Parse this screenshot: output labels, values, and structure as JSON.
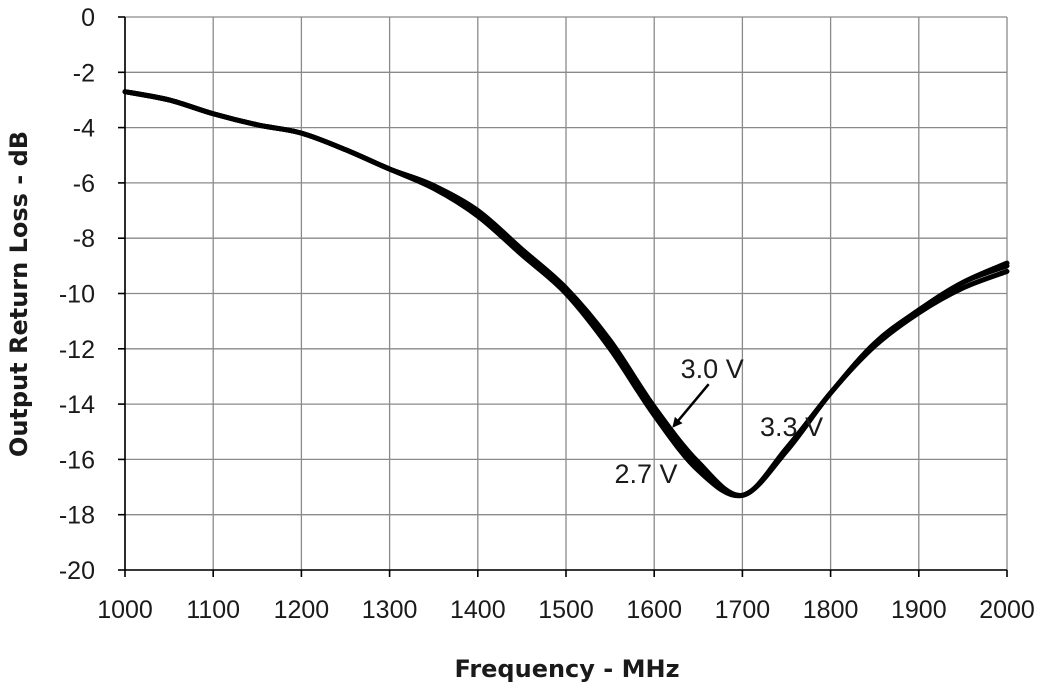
{
  "chart_data": {
    "type": "line",
    "title": "",
    "xlabel": "Frequency - MHz",
    "ylabel": "Output Return Loss - dB",
    "xlim": [
      1000,
      2000
    ],
    "ylim": [
      -20,
      0
    ],
    "x_ticks": [
      1000,
      1100,
      1200,
      1300,
      1400,
      1500,
      1600,
      1700,
      1800,
      1900,
      2000
    ],
    "y_ticks": [
      0,
      -2,
      -4,
      -6,
      -8,
      -10,
      -12,
      -14,
      -16,
      -18,
      -20
    ],
    "grid": true,
    "legend": "none",
    "line_color": "#000000",
    "x": [
      1000,
      1050,
      1100,
      1150,
      1200,
      1250,
      1300,
      1350,
      1400,
      1450,
      1500,
      1550,
      1600,
      1650,
      1700,
      1750,
      1800,
      1850,
      1900,
      1950,
      2000
    ],
    "series": [
      {
        "name": "2.7 V",
        "values": [
          -2.7,
          -3.0,
          -3.5,
          -3.9,
          -4.2,
          -4.8,
          -5.5,
          -6.2,
          -7.2,
          -8.6,
          -10.0,
          -12.0,
          -14.4,
          -16.4,
          -17.3,
          -15.7,
          -13.6,
          -11.9,
          -10.7,
          -9.8,
          -9.2
        ]
      },
      {
        "name": "3.0 V",
        "values": [
          -2.7,
          -3.0,
          -3.5,
          -3.9,
          -4.2,
          -4.8,
          -5.5,
          -6.1,
          -7.1,
          -8.5,
          -9.9,
          -11.8,
          -14.2,
          -16.2,
          -17.3,
          -15.6,
          -13.6,
          -11.8,
          -10.6,
          -9.6,
          -9.0
        ]
      },
      {
        "name": "3.3 V",
        "values": [
          -2.7,
          -3.0,
          -3.5,
          -3.9,
          -4.2,
          -4.8,
          -5.5,
          -6.1,
          -7.0,
          -8.4,
          -9.8,
          -11.7,
          -14.1,
          -16.1,
          -17.3,
          -15.6,
          -13.6,
          -11.8,
          -10.6,
          -9.6,
          -8.9
        ]
      }
    ],
    "annotations": [
      {
        "text": "3.0 V",
        "x": 1630,
        "y": -12.7,
        "arrow_to": [
          1622,
          -14.8
        ]
      },
      {
        "text": "3.3 V",
        "x": 1720,
        "y": -14.8
      },
      {
        "text": "2.7 V",
        "x": 1555,
        "y": -16.5
      }
    ]
  }
}
